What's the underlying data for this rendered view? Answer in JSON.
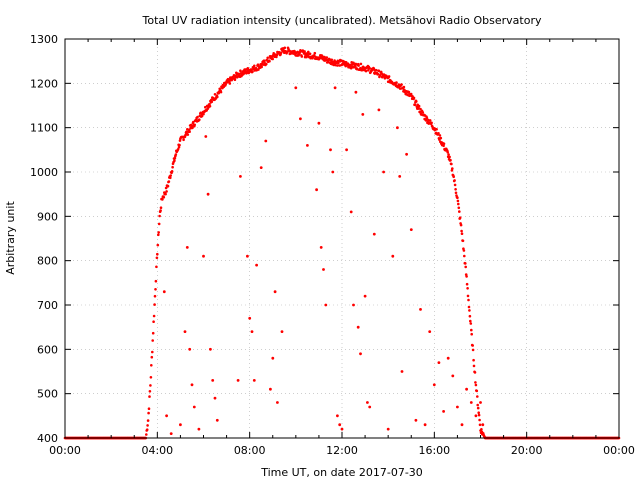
{
  "chart_data": {
    "type": "scatter",
    "title": "Total UV radiation intensity (uncalibrated). Metsähovi Radio Observatory",
    "xlabel": "Time UT, on date 2017-07-30",
    "ylabel": "Arbitrary unit",
    "xlim": [
      "00:00",
      "24:00"
    ],
    "ylim": [
      400,
      1300
    ],
    "x_ticks": [
      "00:00",
      "04:00",
      "08:00",
      "12:00",
      "16:00",
      "20:00",
      "00:00"
    ],
    "y_ticks": [
      400,
      500,
      600,
      700,
      800,
      900,
      1000,
      1100,
      1200,
      1300
    ],
    "grid": true,
    "point_color": "#ff0000",
    "series": [
      {
        "name": "",
        "x_unit": "hours UT",
        "envelope": [
          [
            0,
            400
          ],
          [
            3.5,
            400
          ],
          [
            3.6,
            440
          ],
          [
            3.7,
            520
          ],
          [
            3.8,
            620
          ],
          [
            3.9,
            720
          ],
          [
            4.0,
            820
          ],
          [
            4.1,
            900
          ],
          [
            4.2,
            940
          ],
          [
            4.4,
            960
          ],
          [
            4.6,
            1000
          ],
          [
            4.8,
            1040
          ],
          [
            5.0,
            1070
          ],
          [
            5.3,
            1090
          ],
          [
            5.6,
            1110
          ],
          [
            5.9,
            1130
          ],
          [
            6.2,
            1150
          ],
          [
            6.5,
            1170
          ],
          [
            7.0,
            1200
          ],
          [
            7.5,
            1220
          ],
          [
            8.0,
            1230
          ],
          [
            8.5,
            1240
          ],
          [
            9.0,
            1260
          ],
          [
            9.5,
            1275
          ],
          [
            10.0,
            1270
          ],
          [
            10.5,
            1265
          ],
          [
            11.0,
            1260
          ],
          [
            11.5,
            1250
          ],
          [
            12.0,
            1245
          ],
          [
            12.5,
            1240
          ],
          [
            13.0,
            1235
          ],
          [
            13.5,
            1225
          ],
          [
            14.0,
            1210
          ],
          [
            14.5,
            1195
          ],
          [
            15.0,
            1170
          ],
          [
            15.5,
            1130
          ],
          [
            16.0,
            1100
          ],
          [
            16.3,
            1070
          ],
          [
            16.6,
            1040
          ],
          [
            16.8,
            1000
          ],
          [
            17.0,
            940
          ],
          [
            17.2,
            860
          ],
          [
            17.4,
            760
          ],
          [
            17.6,
            640
          ],
          [
            17.8,
            520
          ],
          [
            18.0,
            420
          ],
          [
            18.2,
            400
          ],
          [
            24,
            400
          ]
        ],
        "scatter_points": [
          [
            4.3,
            730
          ],
          [
            4.4,
            450
          ],
          [
            4.6,
            410
          ],
          [
            5.0,
            430
          ],
          [
            5.2,
            640
          ],
          [
            5.3,
            830
          ],
          [
            5.4,
            600
          ],
          [
            5.5,
            520
          ],
          [
            5.6,
            470
          ],
          [
            5.8,
            420
          ],
          [
            6.0,
            810
          ],
          [
            6.1,
            1080
          ],
          [
            6.2,
            950
          ],
          [
            6.3,
            600
          ],
          [
            6.4,
            530
          ],
          [
            6.5,
            490
          ],
          [
            6.6,
            440
          ],
          [
            7.5,
            530
          ],
          [
            7.6,
            990
          ],
          [
            7.9,
            810
          ],
          [
            8.0,
            670
          ],
          [
            8.1,
            640
          ],
          [
            8.2,
            530
          ],
          [
            8.3,
            790
          ],
          [
            8.5,
            1010
          ],
          [
            8.7,
            1070
          ],
          [
            8.9,
            510
          ],
          [
            9.0,
            580
          ],
          [
            9.1,
            730
          ],
          [
            9.2,
            480
          ],
          [
            9.4,
            640
          ],
          [
            10.0,
            1190
          ],
          [
            10.2,
            1120
          ],
          [
            10.5,
            1060
          ],
          [
            10.9,
            960
          ],
          [
            11.0,
            1110
          ],
          [
            11.1,
            830
          ],
          [
            11.2,
            780
          ],
          [
            11.3,
            700
          ],
          [
            11.5,
            1050
          ],
          [
            11.6,
            1000
          ],
          [
            11.7,
            1190
          ],
          [
            11.8,
            450
          ],
          [
            11.9,
            430
          ],
          [
            12.0,
            420
          ],
          [
            12.2,
            1050
          ],
          [
            12.4,
            910
          ],
          [
            12.5,
            700
          ],
          [
            12.6,
            1180
          ],
          [
            12.7,
            650
          ],
          [
            12.8,
            590
          ],
          [
            12.9,
            1130
          ],
          [
            13.0,
            720
          ],
          [
            13.1,
            480
          ],
          [
            13.2,
            470
          ],
          [
            13.4,
            860
          ],
          [
            13.6,
            1140
          ],
          [
            13.8,
            1000
          ],
          [
            14.0,
            420
          ],
          [
            14.2,
            810
          ],
          [
            14.4,
            1100
          ],
          [
            14.5,
            990
          ],
          [
            14.6,
            550
          ],
          [
            14.8,
            1040
          ],
          [
            15.0,
            870
          ],
          [
            15.2,
            440
          ],
          [
            15.4,
            690
          ],
          [
            15.6,
            430
          ],
          [
            15.8,
            640
          ],
          [
            16.0,
            520
          ],
          [
            16.2,
            570
          ],
          [
            16.4,
            460
          ],
          [
            16.6,
            580
          ],
          [
            16.8,
            540
          ],
          [
            17.0,
            470
          ],
          [
            17.2,
            430
          ],
          [
            17.4,
            510
          ],
          [
            17.6,
            480
          ],
          [
            17.8,
            450
          ],
          [
            18.0,
            480
          ],
          [
            18.1,
            430
          ]
        ]
      }
    ]
  }
}
